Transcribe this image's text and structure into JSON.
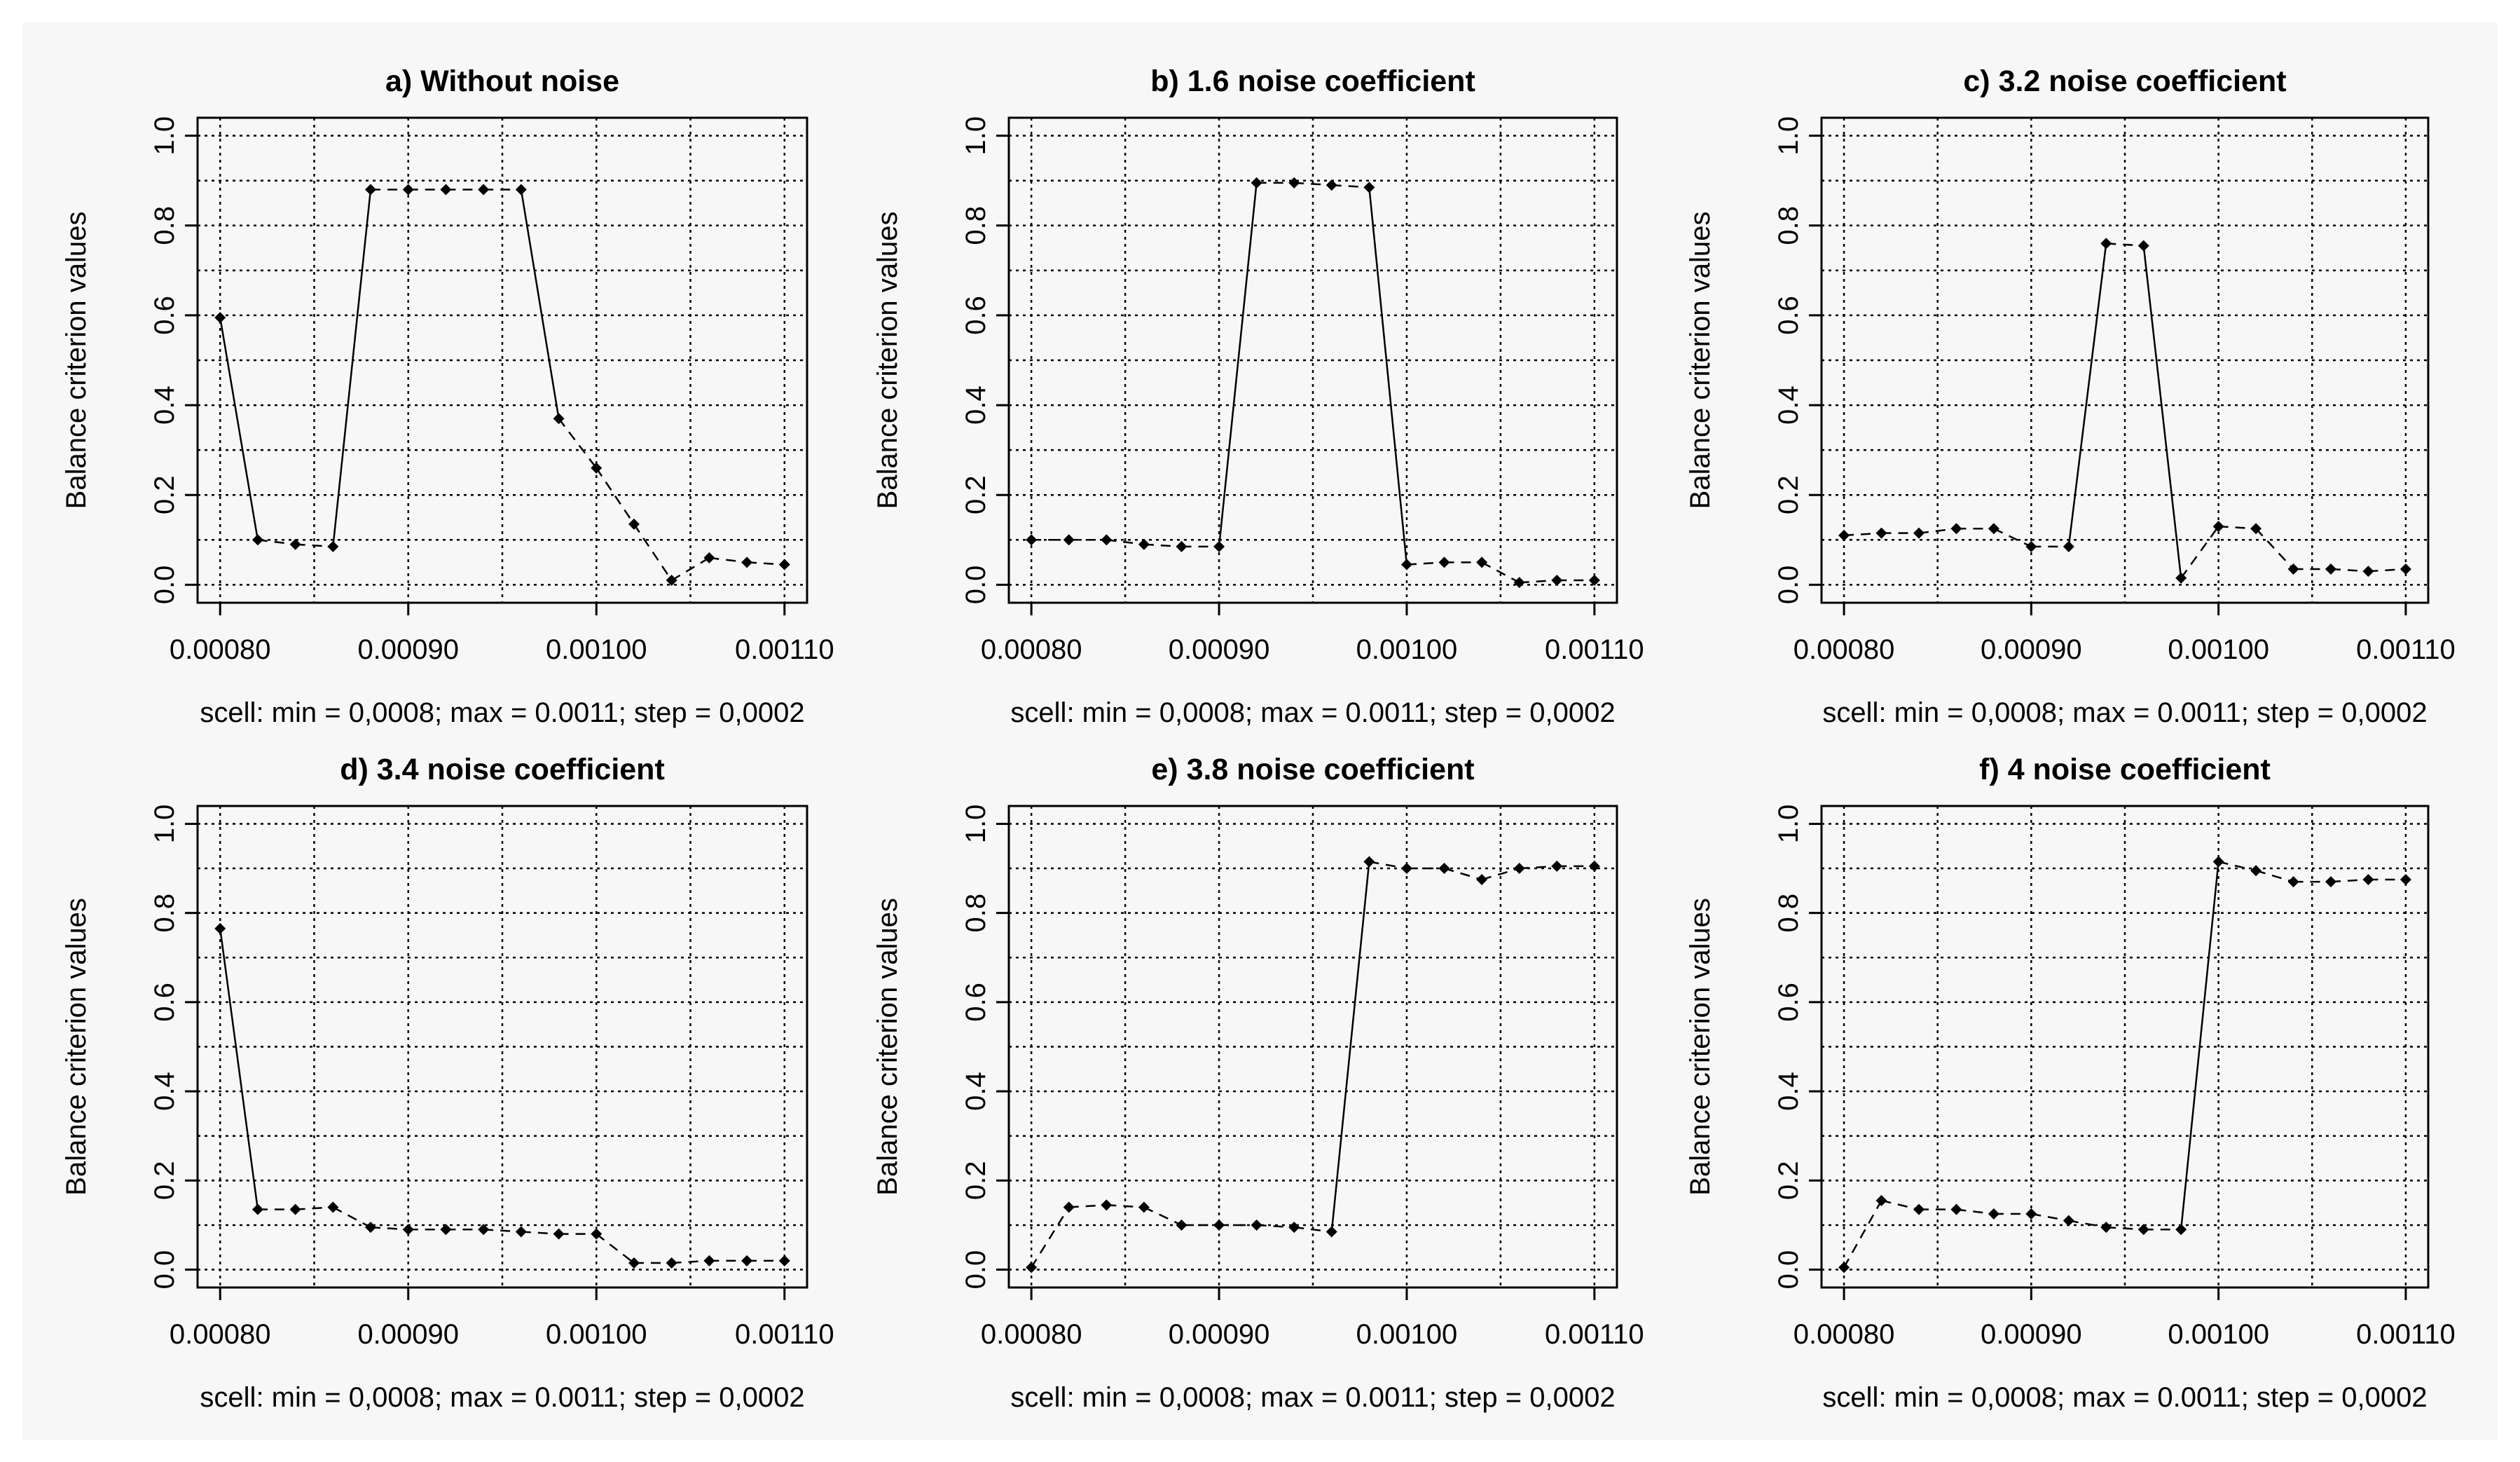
{
  "colors": {
    "background": "#f7f7f7",
    "ink": "#000000"
  },
  "chart_data": [
    {
      "type": "line",
      "title": "a) Without noise",
      "xlabel": "scell: min = 0,0008; max = 0.0011; step = 0,0002",
      "ylabel": "Balance criterion values",
      "xlim": [
        0.0008,
        0.0011
      ],
      "ylim": [
        0,
        1
      ],
      "xticks": [
        "0.00080",
        "0.00090",
        "0.00100",
        "0.00110"
      ],
      "yticks": [
        "0.0",
        "0.2",
        "0.4",
        "0.6",
        "0.8",
        "1.0"
      ],
      "grid": true,
      "x": [
        0.0008,
        0.00082,
        0.00084,
        0.00086,
        0.00088,
        0.0009,
        0.00092,
        0.00094,
        0.00096,
        0.00098,
        0.001,
        0.00102,
        0.00104,
        0.00106,
        0.00108,
        0.0011
      ],
      "values": [
        0.595,
        0.1,
        0.09,
        0.085,
        0.88,
        0.88,
        0.88,
        0.88,
        0.88,
        0.37,
        0.26,
        0.135,
        0.01,
        0.06,
        0.05,
        0.045
      ]
    },
    {
      "type": "line",
      "title": "b) 1.6 noise coefficient",
      "xlabel": "scell: min = 0,0008; max = 0.0011; step = 0,0002",
      "ylabel": "Balance criterion values",
      "xlim": [
        0.0008,
        0.0011
      ],
      "ylim": [
        0,
        1
      ],
      "xticks": [
        "0.00080",
        "0.00090",
        "0.00100",
        "0.00110"
      ],
      "yticks": [
        "0.0",
        "0.2",
        "0.4",
        "0.6",
        "0.8",
        "1.0"
      ],
      "grid": true,
      "x": [
        0.0008,
        0.00082,
        0.00084,
        0.00086,
        0.00088,
        0.0009,
        0.00092,
        0.00094,
        0.00096,
        0.00098,
        0.001,
        0.00102,
        0.00104,
        0.00106,
        0.00108,
        0.0011
      ],
      "values": [
        0.1,
        0.1,
        0.1,
        0.09,
        0.085,
        0.085,
        0.895,
        0.895,
        0.89,
        0.885,
        0.045,
        0.05,
        0.05,
        0.005,
        0.01,
        0.01
      ]
    },
    {
      "type": "line",
      "title": "c) 3.2 noise coefficient",
      "xlabel": "scell: min = 0,0008; max = 0.0011; step = 0,0002",
      "ylabel": "Balance criterion values",
      "xlim": [
        0.0008,
        0.0011
      ],
      "ylim": [
        0,
        1
      ],
      "xticks": [
        "0.00080",
        "0.00090",
        "0.00100",
        "0.00110"
      ],
      "yticks": [
        "0.0",
        "0.2",
        "0.4",
        "0.6",
        "0.8",
        "1.0"
      ],
      "grid": true,
      "x": [
        0.0008,
        0.00082,
        0.00084,
        0.00086,
        0.00088,
        0.0009,
        0.00092,
        0.00094,
        0.00096,
        0.00098,
        0.001,
        0.00102,
        0.00104,
        0.00106,
        0.00108,
        0.0011
      ],
      "values": [
        0.11,
        0.115,
        0.115,
        0.125,
        0.125,
        0.085,
        0.085,
        0.76,
        0.755,
        0.015,
        0.13,
        0.125,
        0.035,
        0.035,
        0.03,
        0.035
      ]
    },
    {
      "type": "line",
      "title": "d) 3.4 noise coefficient",
      "xlabel": "scell: min = 0,0008; max = 0.0011; step = 0,0002",
      "ylabel": "Balance criterion values",
      "xlim": [
        0.0008,
        0.0011
      ],
      "ylim": [
        0,
        1
      ],
      "xticks": [
        "0.00080",
        "0.00090",
        "0.00100",
        "0.00110"
      ],
      "yticks": [
        "0.0",
        "0.2",
        "0.4",
        "0.6",
        "0.8",
        "1.0"
      ],
      "grid": true,
      "x": [
        0.0008,
        0.00082,
        0.00084,
        0.00086,
        0.00088,
        0.0009,
        0.00092,
        0.00094,
        0.00096,
        0.00098,
        0.001,
        0.00102,
        0.00104,
        0.00106,
        0.00108,
        0.0011
      ],
      "values": [
        0.765,
        0.135,
        0.135,
        0.14,
        0.095,
        0.09,
        0.09,
        0.09,
        0.085,
        0.08,
        0.08,
        0.015,
        0.015,
        0.02,
        0.02,
        0.02
      ]
    },
    {
      "type": "line",
      "title": "e) 3.8 noise coefficient",
      "xlabel": "scell: min = 0,0008; max = 0.0011; step = 0,0002",
      "ylabel": "Balance criterion values",
      "xlim": [
        0.0008,
        0.0011
      ],
      "ylim": [
        0,
        1
      ],
      "xticks": [
        "0.00080",
        "0.00090",
        "0.00100",
        "0.00110"
      ],
      "yticks": [
        "0.0",
        "0.2",
        "0.4",
        "0.6",
        "0.8",
        "1.0"
      ],
      "grid": true,
      "x": [
        0.0008,
        0.00082,
        0.00084,
        0.00086,
        0.00088,
        0.0009,
        0.00092,
        0.00094,
        0.00096,
        0.00098,
        0.001,
        0.00102,
        0.00104,
        0.00106,
        0.00108,
        0.0011
      ],
      "values": [
        0.005,
        0.14,
        0.145,
        0.14,
        0.1,
        0.1,
        0.1,
        0.095,
        0.085,
        0.915,
        0.9,
        0.9,
        0.875,
        0.9,
        0.905,
        0.905
      ]
    },
    {
      "type": "line",
      "title": "f) 4 noise coefficient",
      "xlabel": "scell: min = 0,0008; max = 0.0011; step = 0,0002",
      "ylabel": "Balance criterion values",
      "xlim": [
        0.0008,
        0.0011
      ],
      "ylim": [
        0,
        1
      ],
      "xticks": [
        "0.00080",
        "0.00090",
        "0.00100",
        "0.00110"
      ],
      "yticks": [
        "0.0",
        "0.2",
        "0.4",
        "0.6",
        "0.8",
        "1.0"
      ],
      "grid": true,
      "x": [
        0.0008,
        0.00082,
        0.00084,
        0.00086,
        0.00088,
        0.0009,
        0.00092,
        0.00094,
        0.00096,
        0.00098,
        0.001,
        0.00102,
        0.00104,
        0.00106,
        0.00108,
        0.0011
      ],
      "values": [
        0.005,
        0.155,
        0.135,
        0.135,
        0.125,
        0.125,
        0.11,
        0.095,
        0.09,
        0.09,
        0.915,
        0.895,
        0.87,
        0.87,
        0.875,
        0.875
      ]
    }
  ]
}
